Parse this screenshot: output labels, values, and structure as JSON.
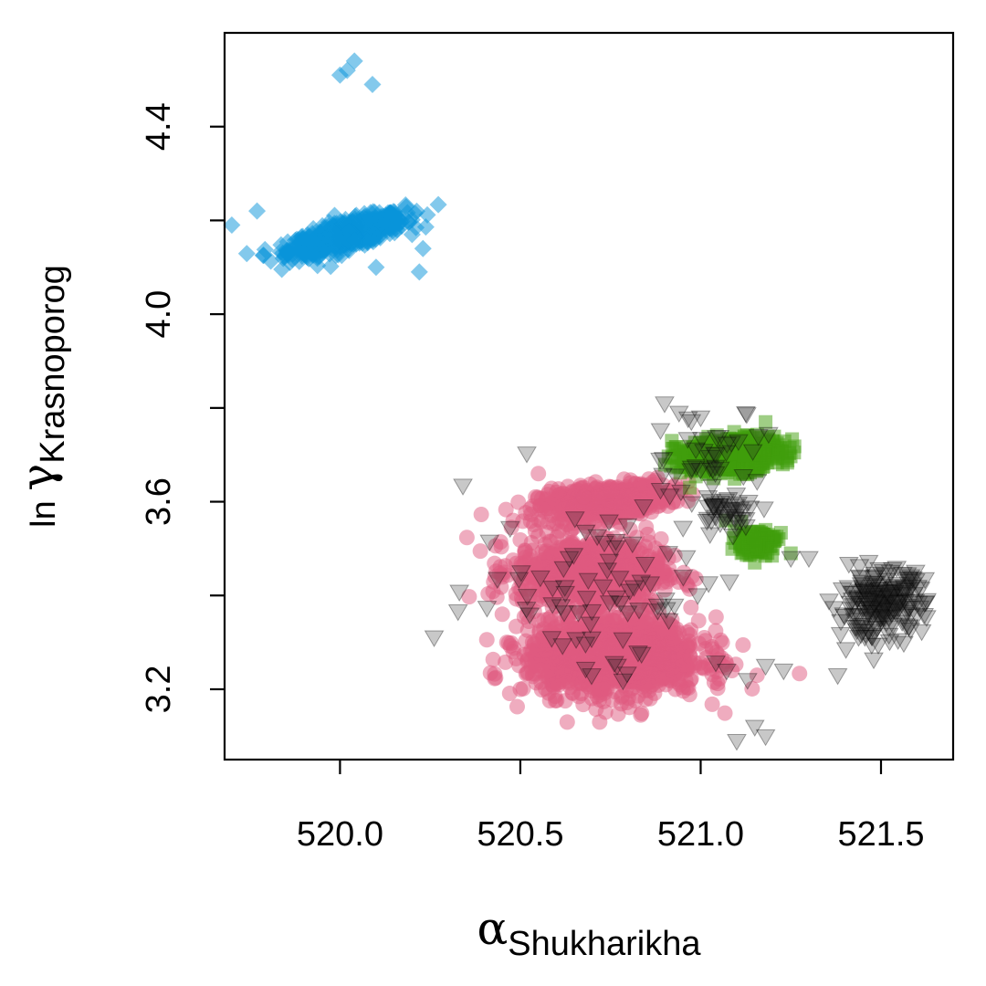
{
  "chart_data": {
    "type": "scatter",
    "title": "",
    "xlabel": {
      "symbol": "α",
      "subscript": "Shukharikha"
    },
    "ylabel": {
      "prefix": "ln ",
      "symbol": "γ",
      "subscript": "Krasnoporog"
    },
    "xlim": [
      519.68,
      521.7
    ],
    "ylim": [
      3.05,
      4.6
    ],
    "x_ticks": [
      "520.0",
      "520.5",
      "521.0",
      "521.5"
    ],
    "x_tick_values": [
      520.0,
      520.5,
      521.0,
      521.5
    ],
    "y_ticks": [
      "3.2",
      "3.6",
      "4.0",
      "4.4"
    ],
    "y_tick_values": [
      3.2,
      3.6,
      4.0,
      4.4
    ],
    "grid": false,
    "legend": null,
    "series": [
      {
        "marker": "diamond",
        "color": "#0893d9",
        "clusters": [
          {
            "cx": 520.02,
            "cy": 4.17,
            "sx": 0.08,
            "sy": 0.022,
            "corr": 0.75,
            "n": 700
          }
        ],
        "points": [
          [
            520.04,
            4.54
          ],
          [
            520.0,
            4.51
          ],
          [
            520.02,
            4.52
          ],
          [
            520.09,
            4.49
          ],
          [
            520.23,
            4.14
          ],
          [
            520.22,
            4.09
          ],
          [
            519.7,
            4.19
          ],
          [
            519.77,
            4.22
          ],
          [
            520.1,
            4.1
          ]
        ]
      },
      {
        "marker": "circle",
        "color": "#e05a80",
        "clusters": [
          {
            "cx": 520.73,
            "cy": 3.6,
            "sx": 0.09,
            "sy": 0.02,
            "corr": 0.4,
            "n": 500
          },
          {
            "cx": 520.69,
            "cy": 3.45,
            "sx": 0.1,
            "sy": 0.035,
            "corr": 0.0,
            "n": 900
          },
          {
            "cx": 520.76,
            "cy": 3.27,
            "sx": 0.12,
            "sy": 0.04,
            "corr": 0.0,
            "n": 1300
          }
        ],
        "points": [
          [
            520.63,
            3.13
          ],
          [
            520.5,
            3.2
          ],
          [
            520.48,
            3.28
          ],
          [
            520.45,
            3.36
          ],
          [
            520.43,
            3.44
          ],
          [
            520.48,
            3.56
          ],
          [
            520.55,
            3.66
          ],
          [
            520.6,
            3.62
          ],
          [
            521.06,
            3.25
          ],
          [
            521.01,
            3.31
          ],
          [
            520.93,
            3.2
          ],
          [
            520.86,
            3.18
          ],
          [
            520.72,
            3.13
          ],
          [
            520.82,
            3.35
          ]
        ]
      },
      {
        "marker": "square",
        "color": "#3f9d0b",
        "clusters": [
          {
            "cx": 521.08,
            "cy": 3.7,
            "sx": 0.07,
            "sy": 0.018,
            "corr": 0.2,
            "n": 550
          },
          {
            "cx": 521.15,
            "cy": 3.515,
            "sx": 0.03,
            "sy": 0.014,
            "corr": 0.0,
            "n": 120
          }
        ],
        "points": [
          [
            521.18,
            3.54
          ],
          [
            521.2,
            3.5
          ],
          [
            521.25,
            3.49
          ],
          [
            521.15,
            3.47
          ],
          [
            521.07,
            3.56
          ],
          [
            521.18,
            3.77
          ],
          [
            520.97,
            3.63
          ],
          [
            520.92,
            3.73
          ]
        ]
      },
      {
        "marker": "triangle-down",
        "color": "#222222",
        "clusters": [
          {
            "cx": 521.5,
            "cy": 3.38,
            "sx": 0.06,
            "sy": 0.035,
            "corr": 0.2,
            "n": 220
          },
          {
            "cx": 521.07,
            "cy": 3.58,
            "sx": 0.05,
            "sy": 0.02,
            "corr": 0.0,
            "n": 45
          },
          {
            "cx": 520.72,
            "cy": 3.42,
            "sx": 0.18,
            "sy": 0.1,
            "corr": 0.0,
            "n": 80
          },
          {
            "cx": 521.02,
            "cy": 3.7,
            "sx": 0.08,
            "sy": 0.05,
            "corr": 0.0,
            "n": 40
          }
        ],
        "points": [
          [
            521.1,
            3.09
          ],
          [
            521.15,
            3.12
          ],
          [
            521.18,
            3.1
          ],
          [
            521.13,
            3.22
          ],
          [
            521.18,
            3.25
          ],
          [
            521.23,
            3.24
          ],
          [
            521.25,
            3.48
          ],
          [
            521.3,
            3.48
          ],
          [
            521.38,
            3.23
          ],
          [
            520.94,
            3.79
          ],
          [
            520.9,
            3.81
          ],
          [
            521.0,
            3.78
          ],
          [
            521.16,
            3.74
          ],
          [
            521.08,
            3.43
          ]
        ]
      }
    ]
  }
}
